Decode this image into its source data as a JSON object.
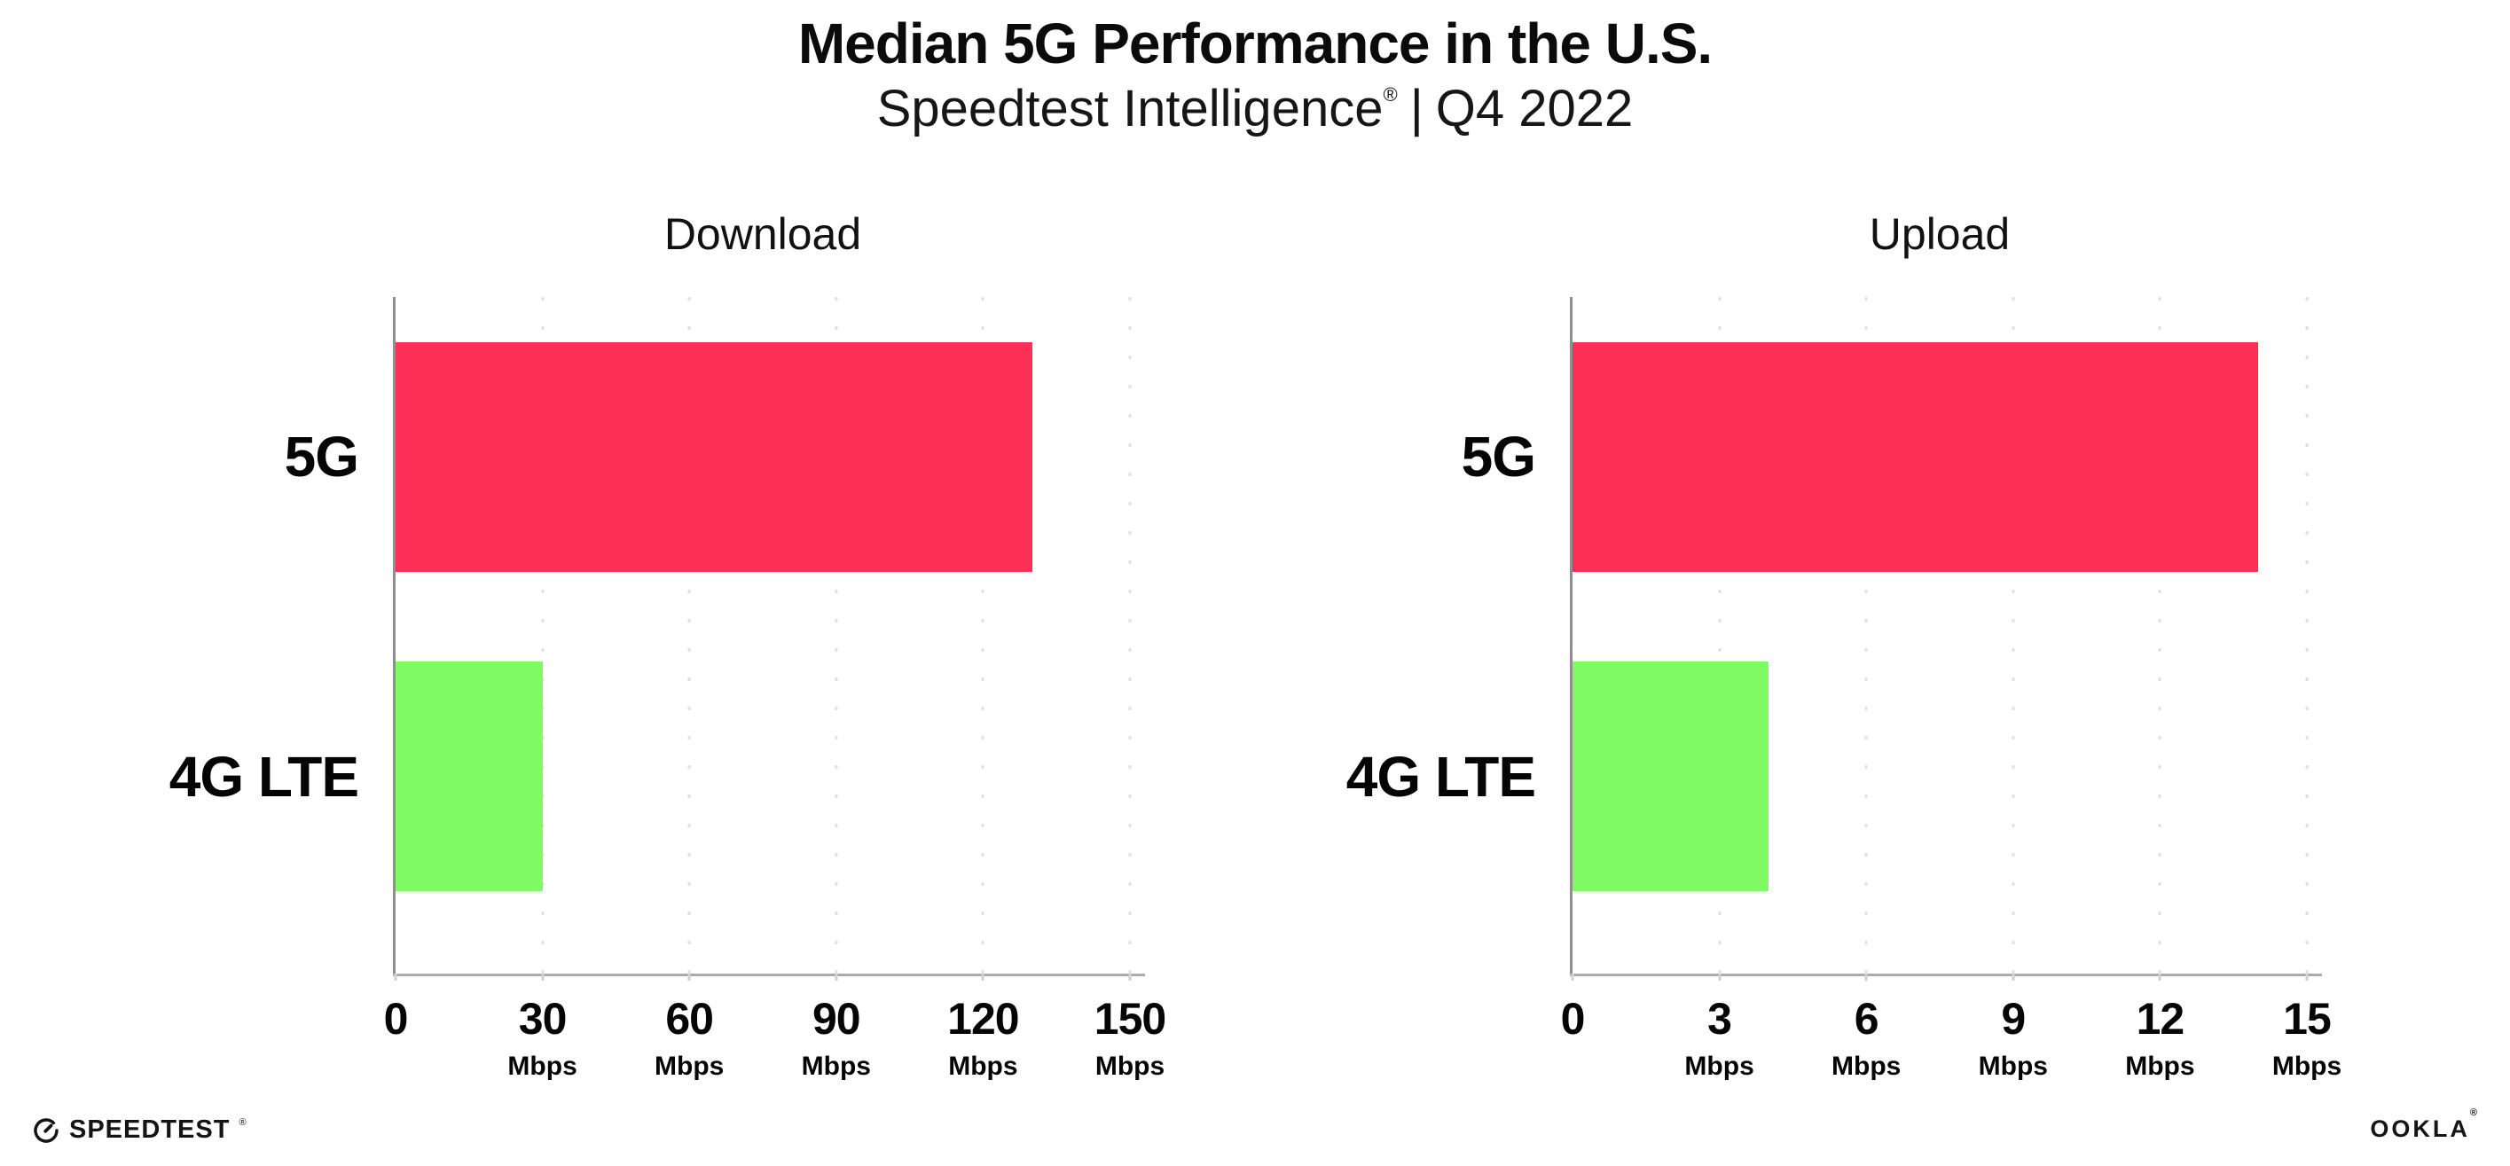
{
  "header": {
    "title": "Median 5G Performance in the U.S.",
    "subtitle": {
      "brand": "Speedtest Intelligence",
      "trademark": "®",
      "separator": "|",
      "period": "Q4 2022"
    }
  },
  "colors": {
    "bar_5g": "#fc3057",
    "bar_4g_lte": "#80fb66",
    "y_axis": "#8f8f8f",
    "x_axis": "#ababab",
    "gridline": "#dfe0ea",
    "text": "#0b0b0b"
  },
  "chart_data": [
    {
      "type": "bar",
      "orientation": "horizontal",
      "title": "Download",
      "categories": [
        "5G",
        "4G LTE"
      ],
      "values": [
        130,
        30
      ],
      "unit": "Mbps",
      "xlim": [
        0,
        150
      ],
      "xticks": [
        0,
        30,
        60,
        90,
        120,
        150
      ],
      "bar_colors": [
        "#fc3057",
        "#80fb66"
      ],
      "grid": "dotted-vertical",
      "legend": "none"
    },
    {
      "type": "bar",
      "orientation": "horizontal",
      "title": "Upload",
      "categories": [
        "5G",
        "4G LTE"
      ],
      "values": [
        14,
        4
      ],
      "unit": "Mbps",
      "xlim": [
        0,
        15
      ],
      "xticks": [
        0,
        3,
        6,
        9,
        12,
        15
      ],
      "bar_colors": [
        "#fc3057",
        "#80fb66"
      ],
      "grid": "dotted-vertical",
      "legend": "none"
    }
  ],
  "footer": {
    "speedtest": {
      "label": "SPEEDTEST",
      "mark": "®"
    },
    "ookla": {
      "label": "OOKLA",
      "mark": "®"
    }
  }
}
